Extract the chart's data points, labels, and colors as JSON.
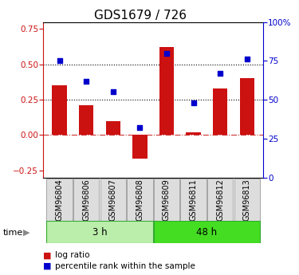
{
  "title": "GDS1679 / 726",
  "samples": [
    "GSM96804",
    "GSM96806",
    "GSM96807",
    "GSM96808",
    "GSM96809",
    "GSM96811",
    "GSM96812",
    "GSM96813"
  ],
  "log_ratio": [
    0.35,
    0.21,
    0.1,
    -0.17,
    0.62,
    0.02,
    0.33,
    0.4
  ],
  "percentile_rank": [
    75,
    62,
    55,
    32,
    80,
    48,
    67,
    76
  ],
  "groups": [
    {
      "label": "3 h",
      "indices": [
        0,
        1,
        2,
        3
      ],
      "color": "#bbeeaa"
    },
    {
      "label": "48 h",
      "indices": [
        4,
        5,
        6,
        7
      ],
      "color": "#44dd22"
    }
  ],
  "bar_color": "#cc1111",
  "dot_color": "#0000cc",
  "ylim_left": [
    -0.3,
    0.8
  ],
  "ylim_right": [
    0,
    100
  ],
  "yticks_left": [
    -0.25,
    0,
    0.25,
    0.5,
    0.75
  ],
  "yticks_right": [
    0,
    25,
    50,
    75,
    100
  ],
  "hlines": [
    0.25,
    0.5
  ],
  "hline_zero_color": "#cc3333",
  "dotted_line_color": "black",
  "background_color": "#ffffff",
  "title_fontsize": 11,
  "tick_fontsize": 7.5,
  "label_fontsize": 7,
  "bar_width": 0.55
}
